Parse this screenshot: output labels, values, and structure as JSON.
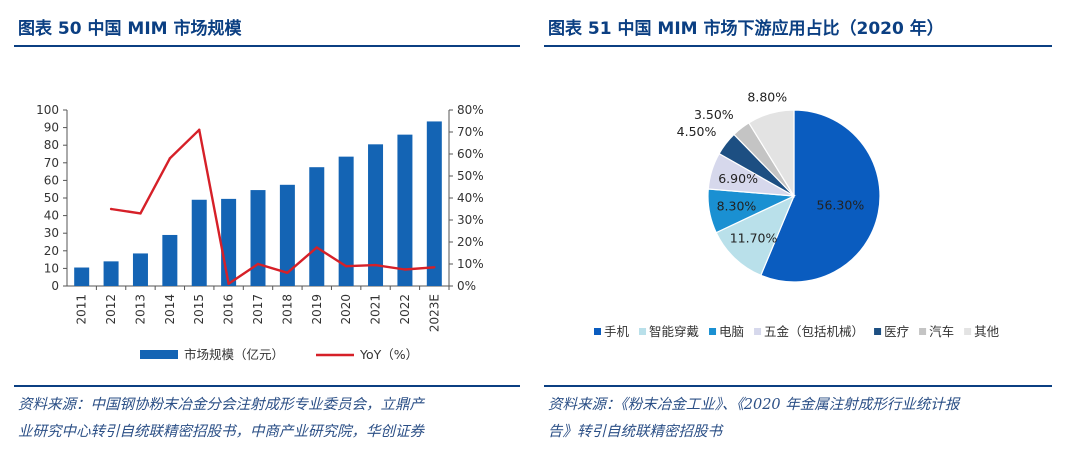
{
  "left": {
    "title": "图表 50 中国 MIM 市场规模",
    "source_line1": "资料来源：中国钢协粉末冶金分会注射成形专业委员会，立鼎产",
    "source_line2": "业研究中心转引自统联精密招股书，中商产业研究院，华创证券"
  },
  "right": {
    "title": "图表 51 中国 MIM 市场下游应用占比（2020 年）",
    "source_line1": "资料来源：《粉末冶金工业》、《2020 年金属注射成形行业统计报",
    "source_line2": "告》转引自统联精密招股书"
  },
  "colors": {
    "bar": "#1464b4",
    "line": "#d62028",
    "accent": "#0b3f82",
    "pie": [
      "#0a5cbf",
      "#b9e0ea",
      "#1a90d2",
      "#d6d8ec",
      "#1d4f82",
      "#c4c4c4",
      "#e3e3e3"
    ]
  },
  "chart_data": [
    {
      "type": "bar",
      "categories": [
        "2011",
        "2012",
        "2013",
        "2014",
        "2015",
        "2016",
        "2017",
        "2018",
        "2019",
        "2020",
        "2021",
        "2022",
        "2023E"
      ],
      "series": [
        {
          "name": "市场规模（亿元）",
          "type": "bar",
          "axis": "left",
          "values": [
            10.5,
            14,
            18.5,
            29,
            49,
            49.5,
            54.5,
            57.5,
            67.5,
            73.5,
            80.5,
            86,
            93.5
          ]
        },
        {
          "name": "YoY（%）",
          "type": "line",
          "axis": "right",
          "values": [
            null,
            35,
            33,
            58,
            71,
            1,
            10,
            6,
            17.5,
            9,
            9.5,
            7.5,
            8.5
          ]
        }
      ],
      "yticks_left": [
        "0",
        "10",
        "20",
        "30",
        "40",
        "50",
        "60",
        "70",
        "80",
        "90",
        "100"
      ],
      "yticks_right": [
        "0%",
        "10%",
        "20%",
        "30%",
        "40%",
        "50%",
        "60%",
        "70%",
        "80%"
      ],
      "ylim": [
        0,
        100
      ],
      "ylim_right": [
        0,
        80
      ],
      "legend_position": "bottom",
      "grid": false
    },
    {
      "type": "pie",
      "labels": [
        "手机",
        "智能穿戴",
        "电脑",
        "五金（包括机械）",
        "医疗",
        "汽车",
        "其他"
      ],
      "values": [
        56.3,
        11.7,
        8.3,
        6.9,
        4.5,
        3.5,
        8.8
      ],
      "value_labels": [
        "56.30%",
        "11.70%",
        "8.30%",
        "6.90%",
        "4.50%",
        "3.50%",
        "8.80%"
      ],
      "legend_position": "bottom"
    }
  ]
}
